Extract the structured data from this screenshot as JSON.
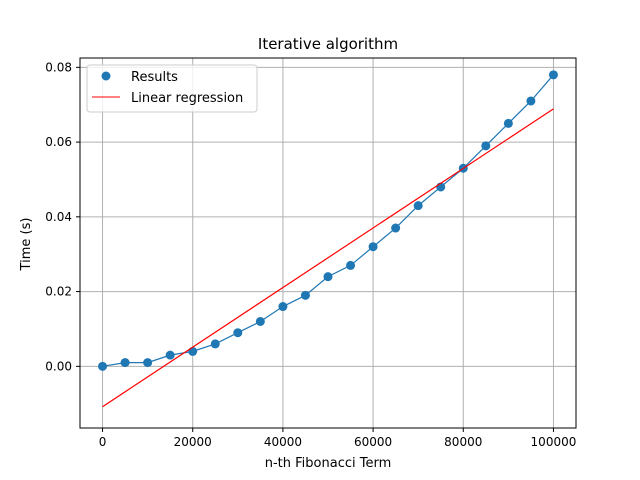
{
  "chart_data": {
    "type": "scatter",
    "title": "Iterative algorithm",
    "xlabel": "n-th Fibonacci Term",
    "ylabel": "Time (s)",
    "xlim": [
      -5000,
      105000
    ],
    "ylim": [
      -0.0165,
      0.0825
    ],
    "grid": true,
    "legend_position": "top-left",
    "x_ticks": [
      0,
      20000,
      40000,
      60000,
      80000,
      100000
    ],
    "x_tick_labels": [
      "0",
      "20000",
      "40000",
      "60000",
      "80000",
      "100000"
    ],
    "y_ticks": [
      0.0,
      0.02,
      0.04,
      0.06,
      0.08
    ],
    "y_tick_labels": [
      "0.00",
      "0.02",
      "0.04",
      "0.06",
      "0.08"
    ],
    "series": [
      {
        "name": "Results",
        "kind": "scatter-connected",
        "color": "#1f77b4",
        "x": [
          0,
          5000,
          10000,
          15000,
          20000,
          25000,
          30000,
          35000,
          40000,
          45000,
          50000,
          55000,
          60000,
          65000,
          70000,
          75000,
          80000,
          85000,
          90000,
          95000,
          100000
        ],
        "y": [
          0.0,
          0.001,
          0.001,
          0.003,
          0.004,
          0.006,
          0.009,
          0.012,
          0.016,
          0.019,
          0.024,
          0.027,
          0.032,
          0.037,
          0.043,
          0.048,
          0.053,
          0.059,
          0.065,
          0.071,
          0.078
        ]
      },
      {
        "name": "Linear regression",
        "kind": "line",
        "color": "#ff0000",
        "x": [
          0,
          100000
        ],
        "y": [
          -0.0108,
          0.0689
        ]
      }
    ]
  }
}
